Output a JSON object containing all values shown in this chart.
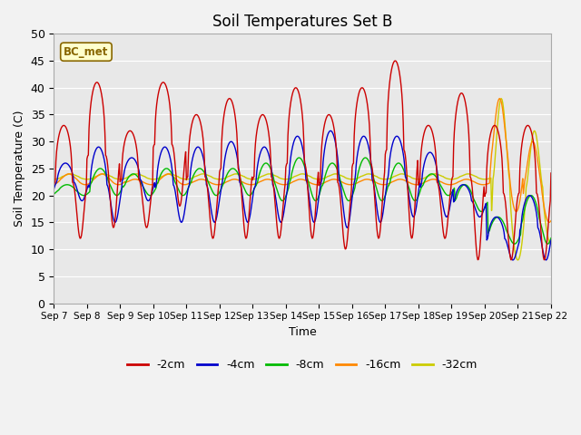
{
  "title": "Soil Temperatures Set B",
  "xlabel": "Time",
  "ylabel": "Soil Temperature (C)",
  "ylim": [
    0,
    50
  ],
  "background_color": "#e8e8e8",
  "fig_color": "#f2f2f2",
  "colors": {
    "-2cm": "#cc0000",
    "-4cm": "#0000cc",
    "-8cm": "#00bb00",
    "-16cm": "#ff8800",
    "-32cm": "#cccc00"
  },
  "label_text": "BC_met",
  "label_bg": "#ffffcc",
  "label_border": "#886600",
  "tick_labels": [
    "Sep 7",
    "Sep 8",
    "Sep 9",
    "Sep 10",
    "Sep 11",
    "Sep 12",
    "Sep 13",
    "Sep 14",
    "Sep 15",
    "Sep 16",
    "Sep 17",
    "Sep 18",
    "Sep 19",
    "Sep 20",
    "Sep 21",
    "Sep 22"
  ],
  "grid_color": "#ffffff",
  "legend_labels": [
    "-2cm",
    "-4cm",
    "-8cm",
    "-16cm",
    "-32cm"
  ]
}
